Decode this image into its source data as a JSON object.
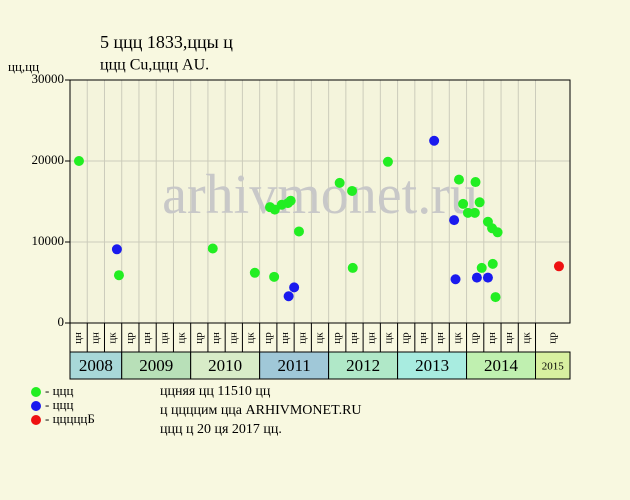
{
  "chart_data": {
    "type": "scatter",
    "title": "5 ццц 1833,ццы ц",
    "subtitle": "ццц Cu,ццц AU.",
    "y_label": "цц,цц",
    "watermark": "arhivmonet.ru",
    "xlim": [
      2008.25,
      2015.5
    ],
    "ylim": [
      0,
      30000
    ],
    "yticks": [
      0,
      10000,
      20000,
      30000
    ],
    "grid": true,
    "xticks": [
      {
        "value": 2008.25,
        "label": "цн"
      },
      {
        "value": 2008.5,
        "label": "цн"
      },
      {
        "value": 2008.75,
        "label": "цк"
      },
      {
        "value": 2009,
        "label": "цр"
      },
      {
        "value": 2009.25,
        "label": "цн"
      },
      {
        "value": 2009.5,
        "label": "цн"
      },
      {
        "value": 2009.75,
        "label": "цк"
      },
      {
        "value": 2010,
        "label": "цр"
      },
      {
        "value": 2010.25,
        "label": "цн"
      },
      {
        "value": 2010.5,
        "label": "цн"
      },
      {
        "value": 2010.75,
        "label": "цк"
      },
      {
        "value": 2011,
        "label": "цр"
      },
      {
        "value": 2011.25,
        "label": "цн"
      },
      {
        "value": 2011.5,
        "label": "цн"
      },
      {
        "value": 2011.75,
        "label": "цк"
      },
      {
        "value": 2012,
        "label": "цр"
      },
      {
        "value": 2012.25,
        "label": "цн"
      },
      {
        "value": 2012.5,
        "label": "цн"
      },
      {
        "value": 2012.75,
        "label": "цк"
      },
      {
        "value": 2013,
        "label": "цр"
      },
      {
        "value": 2013.25,
        "label": "цн"
      },
      {
        "value": 2013.5,
        "label": "цн"
      },
      {
        "value": 2013.75,
        "label": "цк"
      },
      {
        "value": 2014,
        "label": "цр"
      },
      {
        "value": 2014.25,
        "label": "цн"
      },
      {
        "value": 2014.5,
        "label": "цн"
      },
      {
        "value": 2014.75,
        "label": "цк"
      },
      {
        "value": 2015,
        "label": "цр"
      }
    ],
    "years": [
      2008,
      2009,
      2010,
      2011,
      2012,
      2013,
      2014,
      2015
    ],
    "year_colors": [
      "#a8d8d8",
      "#b8e0b8",
      "#d8ecc8",
      "#a0c8d8",
      "#b0e8c8",
      "#a8ece0",
      "#c0f0b0",
      "#d8f0a0"
    ],
    "series": [
      {
        "name": "- ццц",
        "color": "#22ee22",
        "x": [
          2008.38,
          2008.96,
          2010.32,
          2010.93,
          2011.15,
          2011.21,
          2011.22,
          2011.32,
          2011.41,
          2011.45,
          2011.57,
          2012.16,
          2012.34,
          2012.35,
          2012.86,
          2013.89,
          2013.95,
          2014.02,
          2014.12,
          2014.13,
          2014.19,
          2014.22,
          2014.31,
          2014.37,
          2014.38,
          2014.42,
          2014.45
        ],
        "values": [
          20000,
          5900,
          9200,
          6200,
          14300,
          5700,
          14000,
          14600,
          14800,
          15100,
          11300,
          17300,
          16300,
          6800,
          19900,
          17700,
          14700,
          13600,
          13600,
          17400,
          14900,
          6800,
          12500,
          11700,
          7300,
          3200,
          11200
        ]
      },
      {
        "name": "- ццц",
        "color": "#1a1aee",
        "x": [
          2008.93,
          2011.42,
          2011.5,
          2013.53,
          2013.82,
          2013.84,
          2014.15,
          2014.31
        ],
        "values": [
          9100,
          3300,
          4400,
          22500,
          12700,
          5400,
          5600,
          5600
        ]
      },
      {
        "name": "- цццццБ",
        "color": "#ee1111",
        "x": [
          2015.34
        ],
        "values": [
          7000
        ]
      }
    ],
    "notes": [
      "ццняя цц 11510 цц",
      "ц ццццим цца ARHIVMONET.RU",
      "ццц ц 20 ця 2017 цц."
    ]
  }
}
